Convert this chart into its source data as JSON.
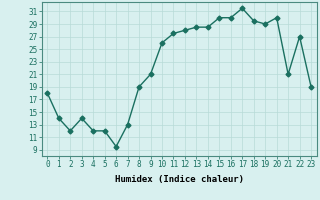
{
  "x": [
    0,
    1,
    2,
    3,
    4,
    5,
    6,
    7,
    8,
    9,
    10,
    11,
    12,
    13,
    14,
    15,
    16,
    17,
    18,
    19,
    20,
    21,
    22,
    23
  ],
  "y": [
    18,
    14,
    12,
    14,
    12,
    12,
    9.5,
    13,
    19,
    21,
    26,
    27.5,
    28,
    28.5,
    28.5,
    30,
    30,
    31.5,
    29.5,
    29,
    30,
    21,
    27,
    19
  ],
  "line_color": "#1a7060",
  "marker": "D",
  "marker_size": 2.5,
  "bg_color": "#d8f0ef",
  "grid_color": "#b8dbd8",
  "xlabel": "Humidex (Indice chaleur)",
  "xlim": [
    -0.5,
    23.5
  ],
  "ylim": [
    8.0,
    32.5
  ],
  "yticks": [
    9,
    11,
    13,
    15,
    17,
    19,
    21,
    23,
    25,
    27,
    29,
    31
  ],
  "xticks": [
    0,
    1,
    2,
    3,
    4,
    5,
    6,
    7,
    8,
    9,
    10,
    11,
    12,
    13,
    14,
    15,
    16,
    17,
    18,
    19,
    20,
    21,
    22,
    23
  ],
  "xlabel_fontsize": 6.5,
  "tick_fontsize": 5.5,
  "line_width": 1.0
}
